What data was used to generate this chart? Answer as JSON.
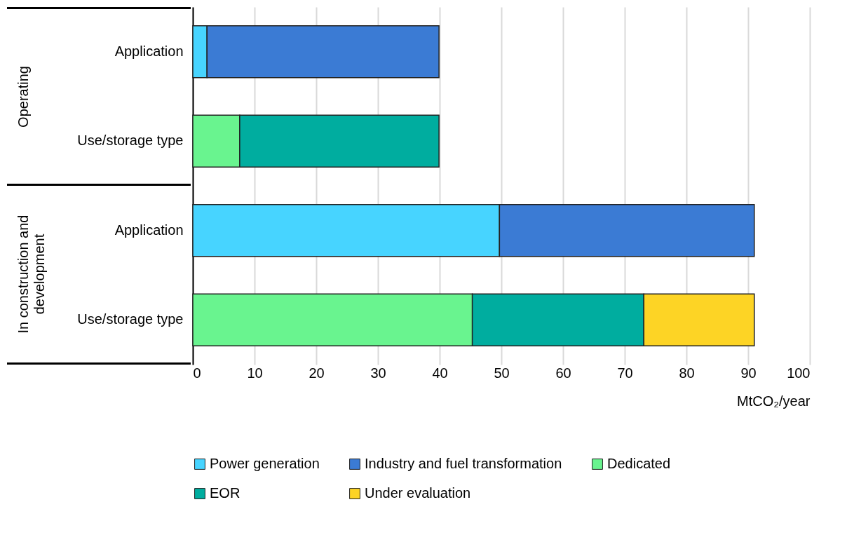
{
  "chart_data": {
    "type": "bar",
    "orientation": "horizontal",
    "stacked": true,
    "categories": [
      "Application",
      "Use/storage type",
      "Application",
      "Use/storage type"
    ],
    "series": [
      {
        "name": "Power generation",
        "color": "#47d4ff",
        "values": [
          2.3,
          null,
          49.7,
          null
        ]
      },
      {
        "name": "Industry and fuel transformation",
        "color": "#3b7bd4",
        "values": [
          37.6,
          null,
          41.3,
          null
        ]
      },
      {
        "name": "Dedicated",
        "color": "#69f48f",
        "values": [
          null,
          7.6,
          null,
          45.3
        ]
      },
      {
        "name": "EOR",
        "color": "#00ad9f",
        "values": [
          null,
          32.3,
          null,
          27.8
        ]
      },
      {
        "name": "Under evaluation",
        "color": "#fdd425",
        "values": [
          null,
          null,
          null,
          17.9
        ]
      }
    ],
    "xlim": [
      0,
      100
    ],
    "xticks": [
      0,
      10,
      20,
      30,
      40,
      50,
      60,
      70,
      80,
      90,
      100
    ],
    "xlabel": "MtCO₂/year",
    "grid": "x",
    "legend": "bottom",
    "annotations": [
      "Operating",
      "In construction and development"
    ]
  }
}
